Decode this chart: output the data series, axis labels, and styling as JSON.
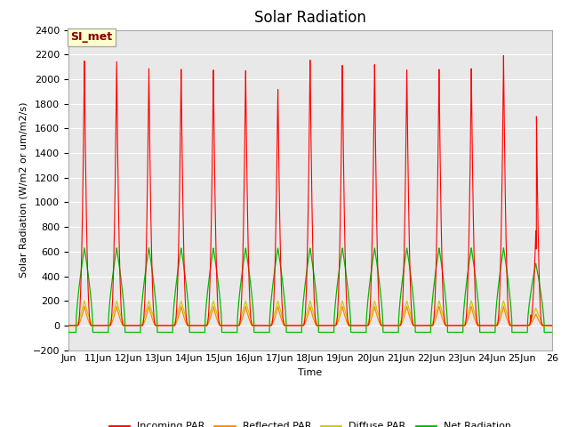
{
  "title": "Solar Radiation",
  "ylabel": "Solar Radiation (W/m2 or um/m2/s)",
  "xlabel": "Time",
  "ylim": [
    -200,
    2400
  ],
  "yticks": [
    -200,
    0,
    200,
    400,
    600,
    800,
    1000,
    1200,
    1400,
    1600,
    1800,
    2000,
    2200,
    2400
  ],
  "x_labels": [
    "Jun",
    "11Jun",
    "12Jun",
    "13Jun",
    "14Jun",
    "15Jun",
    "16Jun",
    "17Jun",
    "18Jun",
    "19Jun",
    "20Jun",
    "21Jun",
    "22Jun",
    "23Jun",
    "24Jun",
    "25Jun",
    "26"
  ],
  "annotation_text": "SI_met",
  "annotation_box_color": "#FFFFCC",
  "annotation_border_color": "#AAAAAA",
  "annotation_text_color": "#800000",
  "incoming_color": "#FF0000",
  "reflected_color": "#FF8C00",
  "diffuse_color": "#CCCC00",
  "net_color": "#00BB00",
  "background_color": "#E8E8E8",
  "grid_color": "#FFFFFF",
  "n_days": 15,
  "incoming_peak": 2150,
  "reflected_peak": 155,
  "diffuse_peak": 200,
  "net_peak": 630,
  "net_night": -55,
  "legend_entries": [
    "Incoming PAR",
    "Reflected PAR",
    "Diffuse PAR",
    "Net Radiation"
  ],
  "title_fontsize": 12,
  "label_fontsize": 8,
  "tick_fontsize": 8
}
